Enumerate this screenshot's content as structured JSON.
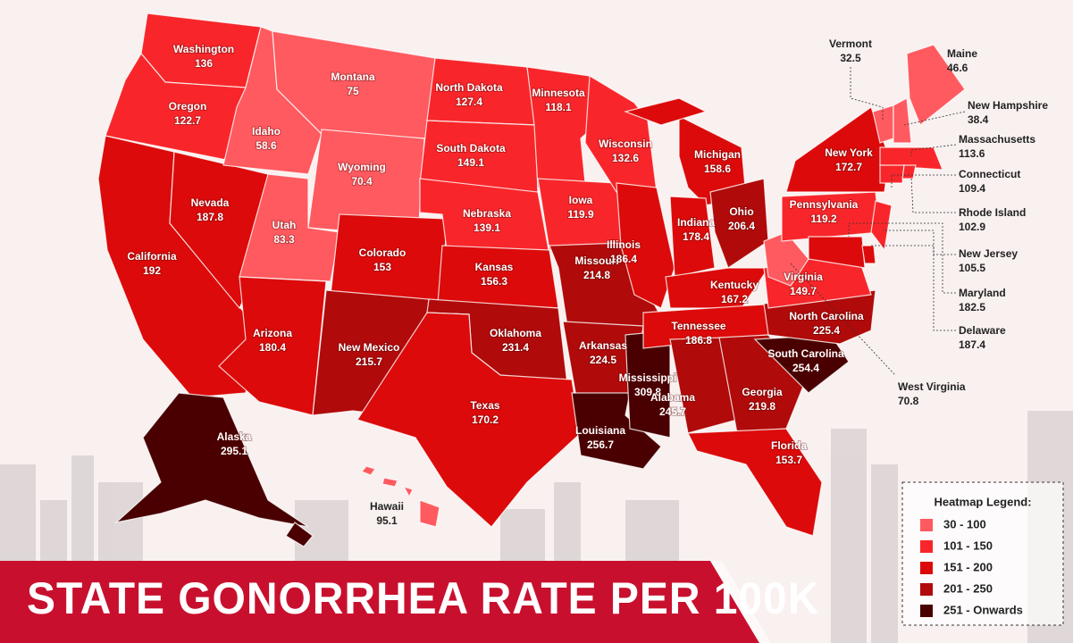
{
  "title": "STATE GONORRHEA RATE PER 100K",
  "legend": {
    "title": "Heatmap Legend:",
    "items": [
      {
        "label": "30 - 100",
        "color": "#ff5a5f"
      },
      {
        "label": "101 - 150",
        "color": "#f8262a"
      },
      {
        "label": "151 - 200",
        "color": "#dc0a0a"
      },
      {
        "label": "201 - 250",
        "color": "#b00a0a"
      },
      {
        "label": "251 - Onwards",
        "color": "#4a0000"
      }
    ]
  },
  "states": [
    {
      "name": "Washington",
      "value": 136,
      "color": "#f8262a"
    },
    {
      "name": "Oregon",
      "value": 122.7,
      "color": "#f8262a"
    },
    {
      "name": "California",
      "value": 192,
      "color": "#dc0a0a"
    },
    {
      "name": "Nevada",
      "value": 187.8,
      "color": "#dc0a0a"
    },
    {
      "name": "Idaho",
      "value": 58.6,
      "color": "#ff5a5f"
    },
    {
      "name": "Montana",
      "value": 75,
      "color": "#ff5a5f"
    },
    {
      "name": "Wyoming",
      "value": 70.4,
      "color": "#ff5a5f"
    },
    {
      "name": "Utah",
      "value": 83.3,
      "color": "#ff5a5f"
    },
    {
      "name": "Arizona",
      "value": 180.4,
      "color": "#dc0a0a"
    },
    {
      "name": "Colorado",
      "value": 153,
      "color": "#dc0a0a"
    },
    {
      "name": "New Mexico",
      "value": 215.7,
      "color": "#b00a0a"
    },
    {
      "name": "North Dakota",
      "value": 127.4,
      "color": "#f8262a"
    },
    {
      "name": "South Dakota",
      "value": 149.1,
      "color": "#f8262a"
    },
    {
      "name": "Nebraska",
      "value": 139.1,
      "color": "#f8262a"
    },
    {
      "name": "Kansas",
      "value": 156.3,
      "color": "#dc0a0a"
    },
    {
      "name": "Oklahoma",
      "value": 231.4,
      "color": "#b00a0a"
    },
    {
      "name": "Texas",
      "value": 170.2,
      "color": "#dc0a0a"
    },
    {
      "name": "Minnesota",
      "value": 118.1,
      "color": "#f8262a"
    },
    {
      "name": "Iowa",
      "value": 119.9,
      "color": "#f8262a"
    },
    {
      "name": "Missouri",
      "value": 214.8,
      "color": "#b00a0a"
    },
    {
      "name": "Arkansas",
      "value": 224.5,
      "color": "#b00a0a"
    },
    {
      "name": "Louisiana",
      "value": 256.7,
      "color": "#4a0000"
    },
    {
      "name": "Wisconsin",
      "value": 132.6,
      "color": "#f8262a"
    },
    {
      "name": "Illinois",
      "value": 186.4,
      "color": "#dc0a0a"
    },
    {
      "name": "Mississippi",
      "value": 309.8,
      "color": "#4a0000"
    },
    {
      "name": "Michigan",
      "value": 158.6,
      "color": "#dc0a0a"
    },
    {
      "name": "Indiana",
      "value": 178.4,
      "color": "#dc0a0a"
    },
    {
      "name": "Ohio",
      "value": 206.4,
      "color": "#b00a0a"
    },
    {
      "name": "Kentucky",
      "value": 167.2,
      "color": "#dc0a0a"
    },
    {
      "name": "Tennessee",
      "value": 186.8,
      "color": "#dc0a0a"
    },
    {
      "name": "Alabama",
      "value": 245.7,
      "color": "#b00a0a"
    },
    {
      "name": "Georgia",
      "value": 219.8,
      "color": "#b00a0a"
    },
    {
      "name": "Florida",
      "value": 153.7,
      "color": "#dc0a0a"
    },
    {
      "name": "South Carolina",
      "value": 254.4,
      "color": "#4a0000"
    },
    {
      "name": "North Carolina",
      "value": 225.4,
      "color": "#b00a0a"
    },
    {
      "name": "Virginia",
      "value": 149.7,
      "color": "#f8262a"
    },
    {
      "name": "West Virginia",
      "value": 70.8,
      "color": "#ff5a5f"
    },
    {
      "name": "Pennsylvania",
      "value": 119.2,
      "color": "#f8262a"
    },
    {
      "name": "New York",
      "value": 172.7,
      "color": "#dc0a0a"
    },
    {
      "name": "Vermont",
      "value": 32.5,
      "color": "#ff5a5f"
    },
    {
      "name": "New Hampshire",
      "value": 38.4,
      "color": "#ff5a5f"
    },
    {
      "name": "Maine",
      "value": 46.6,
      "color": "#ff5a5f"
    },
    {
      "name": "Massachusetts",
      "value": 113.6,
      "color": "#f8262a"
    },
    {
      "name": "Connecticut",
      "value": 109.4,
      "color": "#f8262a"
    },
    {
      "name": "Rhode Island",
      "value": 102.9,
      "color": "#f8262a"
    },
    {
      "name": "New Jersey",
      "value": 105.5,
      "color": "#f8262a"
    },
    {
      "name": "Maryland",
      "value": 182.5,
      "color": "#dc0a0a"
    },
    {
      "name": "Delaware",
      "value": 187.4,
      "color": "#dc0a0a"
    },
    {
      "name": "Alaska",
      "value": 295.1,
      "color": "#4a0000"
    },
    {
      "name": "Hawaii",
      "value": 95.1,
      "color": "#ff5a5f"
    }
  ]
}
